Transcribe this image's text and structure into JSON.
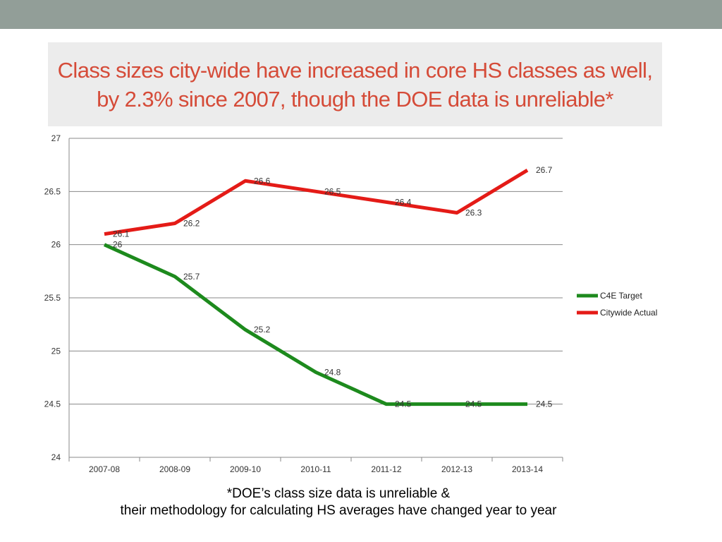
{
  "slide": {
    "title": "Class sizes city-wide have increased in core HS classes as well, by 2.3% since 2007, though the DOE data is unreliable*",
    "footnote_line1": "*DOE’s class size data is unreliable &",
    "footnote_line2": "their methodology for calculating HS averages have changed year to year"
  },
  "chart_data": {
    "type": "line",
    "title": "",
    "xlabel": "",
    "ylabel": "",
    "categories": [
      "2007-08",
      "2008-09",
      "2009-10",
      "2010-11",
      "2011-12",
      "2012-13",
      "2013-14"
    ],
    "ylim": [
      24,
      27
    ],
    "yticks": [
      "24",
      "24.5",
      "25",
      "25.5",
      "26",
      "26.5",
      "27"
    ],
    "grid": true,
    "legend_position": "right",
    "series": [
      {
        "name": "C4E Target",
        "color": "#1d8a1d",
        "values": [
          26,
          25.7,
          25.2,
          24.8,
          24.5,
          24.5,
          24.5
        ],
        "labels": [
          "26",
          "25.7",
          "25.2",
          "24.8",
          "24.5",
          "24.5",
          "24.5"
        ]
      },
      {
        "name": "Citywide Actual",
        "color": "#e41b17",
        "values": [
          26.1,
          26.2,
          26.6,
          26.5,
          26.4,
          26.3,
          26.7
        ],
        "labels": [
          "26.1",
          "26.2",
          "26.6",
          "26.5",
          "26.4",
          "26.3",
          "26.7"
        ]
      }
    ]
  }
}
